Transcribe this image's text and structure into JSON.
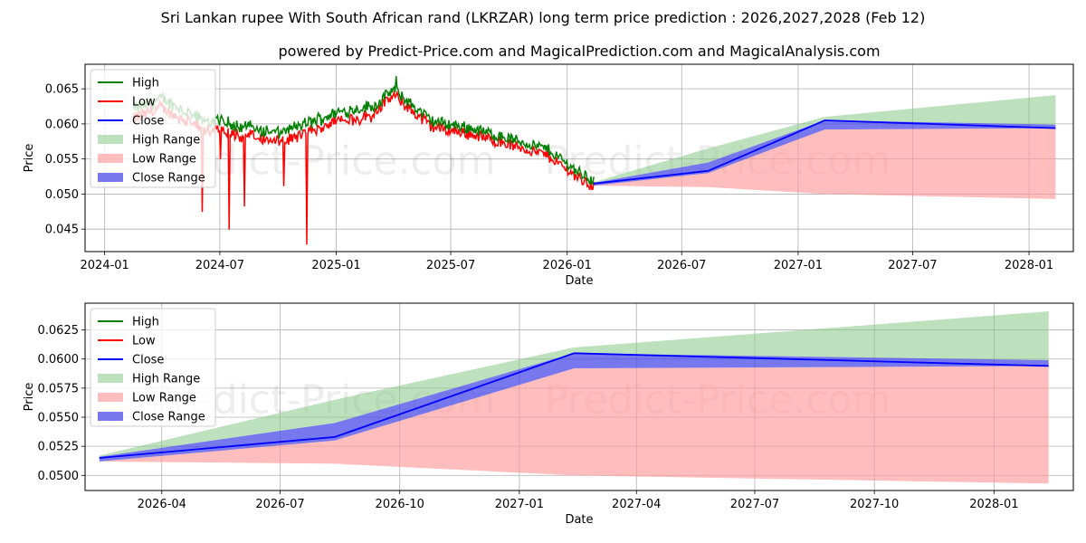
{
  "title": "Sri Lankan rupee With South African rand (LKRZAR) long term price prediction : 2026,2027,2028 (Feb 12)",
  "subtitle": "powered by Predict-Price.com and MagicalPrediction.com and MagicalAnalysis.com",
  "watermark": "Predict-Price.com",
  "colors": {
    "high": "#008000",
    "low": "#ff0000",
    "close": "#0000ff",
    "high_range": "#86c986",
    "low_range": "#ff9a9a",
    "close_range": "#4a4ae8"
  },
  "legend": [
    "High",
    "Low",
    "Close",
    "High Range",
    "Low Range",
    "Close Range"
  ],
  "chart_data": [
    {
      "type": "line",
      "panel": "top",
      "xlabel": "Date",
      "ylabel": "Price",
      "xlim": [
        "2023-12-01",
        "2028-03-11"
      ],
      "ylim": [
        0.0418,
        0.0685
      ],
      "x_ticks": [
        "2024-01",
        "2024-07",
        "2025-01",
        "2025-07",
        "2026-01",
        "2026-07",
        "2027-01",
        "2027-07",
        "2028-01"
      ],
      "y_ticks": [
        "0.045",
        "0.050",
        "0.055",
        "0.060",
        "0.065"
      ],
      "history_keypoints": {
        "dates": [
          "2024-02-15",
          "2024-04-01",
          "2024-06-01",
          "2024-07-15",
          "2024-10-01",
          "2025-01-01",
          "2025-03-01",
          "2025-04-01",
          "2025-06-01",
          "2025-08-01",
          "2025-10-01",
          "2025-12-01",
          "2026-01-15",
          "2026-02-12"
        ],
        "close": [
          0.0615,
          0.063,
          0.06,
          0.0595,
          0.058,
          0.061,
          0.062,
          0.0645,
          0.06,
          0.059,
          0.0575,
          0.056,
          0.053,
          0.0515
        ]
      },
      "history_extremes": {
        "high_peak": {
          "date": "2025-04-05",
          "value": 0.0668
        },
        "low_trough": {
          "date": "2024-11-15",
          "value": 0.0428
        }
      }
    },
    {
      "type": "line",
      "panel": "bottom",
      "xlabel": "Date",
      "ylabel": "Price",
      "xlim": [
        "2026-02-01",
        "2028-03-02"
      ],
      "ylim": [
        0.0487,
        0.0648
      ],
      "x_ticks": [
        "2026-04",
        "2026-07",
        "2026-10",
        "2027-01",
        "2027-04",
        "2027-07",
        "2027-10",
        "2028-01"
      ],
      "y_ticks": [
        "0.0500",
        "0.0525",
        "0.0550",
        "0.0575",
        "0.0600",
        "0.0625"
      ]
    }
  ],
  "forecast": {
    "dates": [
      "2026-02-12",
      "2026-08-12",
      "2027-02-12",
      "2028-02-12"
    ],
    "close": [
      0.0515,
      0.0533,
      0.0605,
      0.0594
    ],
    "high_range": [
      0.0517,
      0.0565,
      0.061,
      0.0641
    ],
    "low_range": [
      0.0512,
      0.051,
      0.05,
      0.0493
    ],
    "close_range_upper": [
      0.0516,
      0.0545,
      0.0605,
      0.0599
    ],
    "close_range_lower": [
      0.0512,
      0.053,
      0.0592,
      0.0594
    ]
  }
}
